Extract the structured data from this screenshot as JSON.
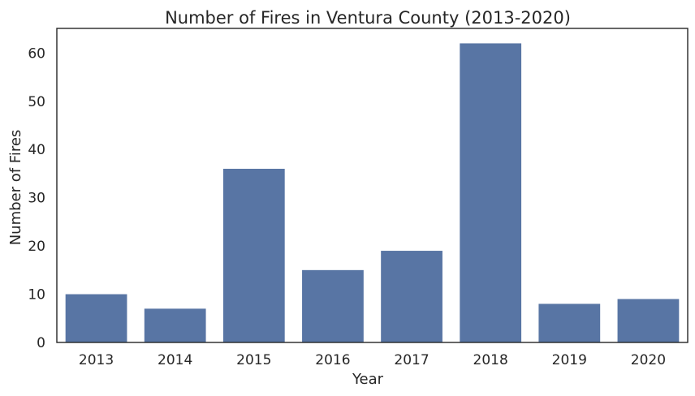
{
  "chart_data": {
    "type": "bar",
    "title": "Number of Fires in Ventura County (2013-2020)",
    "xlabel": "Year",
    "ylabel": "Number of Fires",
    "categories": [
      "2013",
      "2014",
      "2015",
      "2016",
      "2017",
      "2018",
      "2019",
      "2020"
    ],
    "values": [
      10,
      7,
      36,
      15,
      19,
      62,
      8,
      9
    ],
    "ylim": [
      0,
      65.1
    ],
    "yticks": [
      0,
      10,
      20,
      30,
      40,
      50,
      60
    ],
    "grid": false,
    "bar_color": "#5875a4",
    "spine_color": "#262626"
  }
}
